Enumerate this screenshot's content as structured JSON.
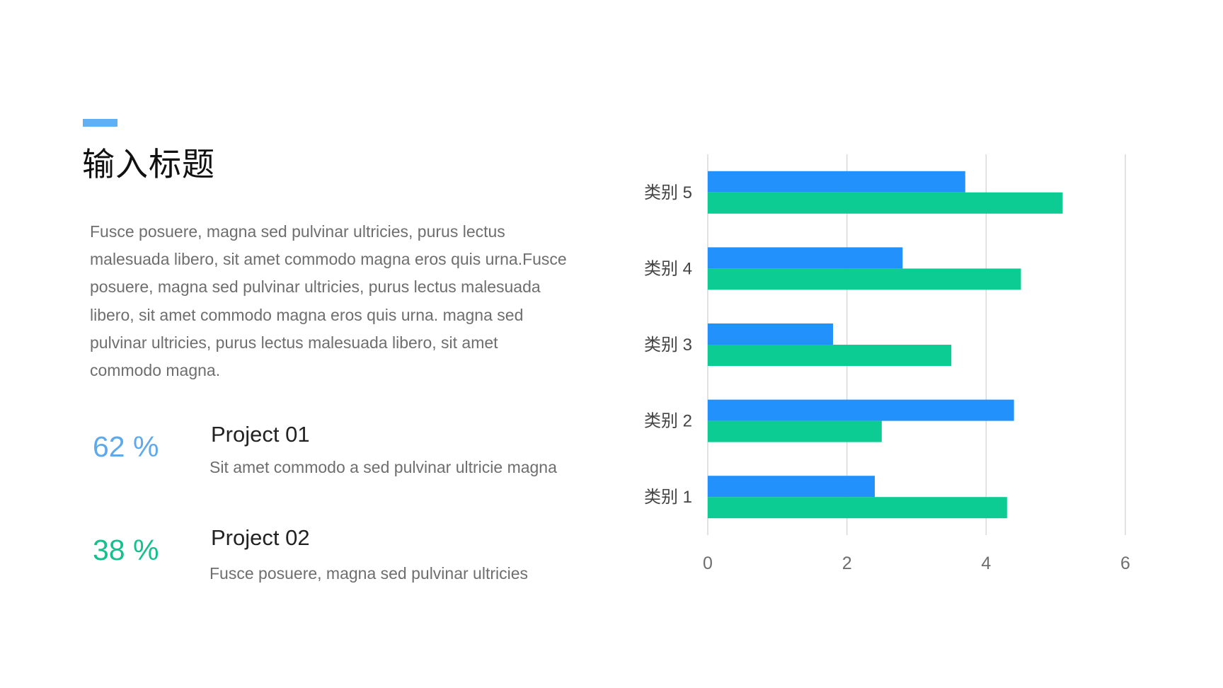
{
  "slide": {
    "title": "输入标题",
    "paragraph": "Fusce posuere, magna sed pulvinar ultricies, purus lectus malesuada libero, sit amet commodo magna eros quis urna.Fusce posuere, magna sed pulvinar ultricies, purus lectus malesuada libero, sit amet commodo magna eros quis urna. magna sed pulvinar ultricies, purus lectus malesuada libero, sit amet commodo magna.",
    "projects": [
      {
        "percent": "62 %",
        "title": "Project 01",
        "desc": "Sit amet commodo a sed pulvinar ultricie magna"
      },
      {
        "percent": "38 %",
        "title": "Project 02",
        "desc": "Fusce posuere, magna sed pulvinar ultricies"
      }
    ]
  },
  "colors": {
    "accent": "#5fb0f4",
    "series_blue": "#2391fb",
    "series_green": "#0ccb93",
    "stat_blue": "#5ea8ec",
    "stat_green": "#14c08d",
    "gridline": "#d9d9d9",
    "text_gray": "#6e6e6e"
  },
  "chart_data": {
    "type": "bar",
    "orientation": "horizontal",
    "categories": [
      "类别 1",
      "类别 2",
      "类别 3",
      "类别 4",
      "类别 5"
    ],
    "series": [
      {
        "values": [
          2.4,
          4.4,
          1.8,
          2.8,
          3.7
        ],
        "color": "#2391fb"
      },
      {
        "values": [
          4.3,
          2.5,
          3.5,
          4.5,
          5.1
        ],
        "color": "#0ccb93"
      }
    ],
    "xlim": [
      0,
      6
    ],
    "xticks": [
      "0",
      "2",
      "4",
      "6"
    ],
    "grid": "vertical",
    "legend": "none"
  }
}
